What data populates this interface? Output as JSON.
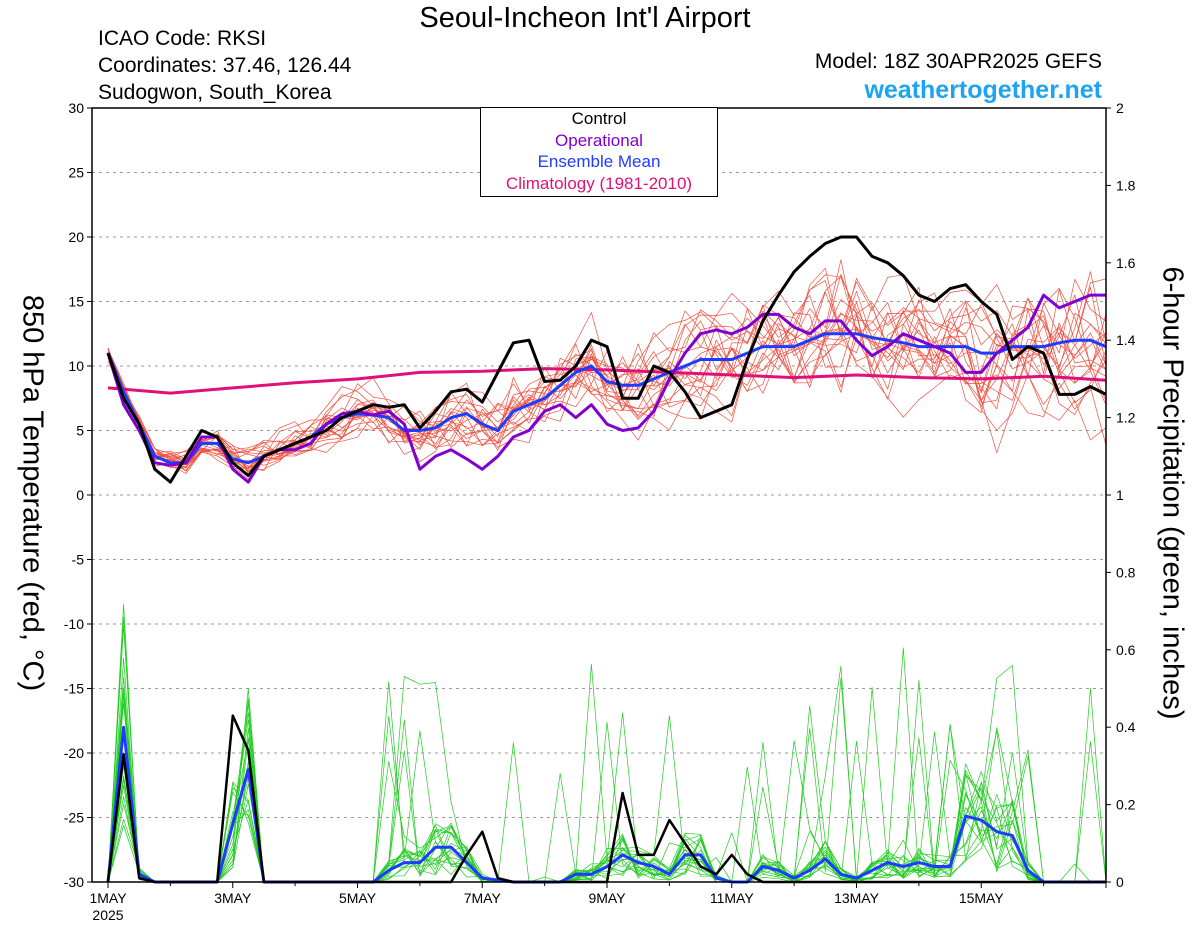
{
  "header": {
    "title": "Seoul-Incheon Int'l Airport",
    "icao": "ICAO Code: RKSI",
    "coords": "Coordinates: 37.46, 126.44",
    "region": "Sudogwon, South_Korea",
    "model": "Model: 18Z 30APR2025 GEFS",
    "site": "weathertogether.net"
  },
  "chart_data": {
    "type": "line",
    "ylabel": "850 hPa Temperature (red, °C)",
    "y2label": "6-hour Precipitation (green, inches)",
    "ylim": [
      -30,
      30
    ],
    "y2lim": [
      0,
      2
    ],
    "xlim_days": [
      0,
      16
    ],
    "yticks": [
      "30",
      "25",
      "20",
      "15",
      "10",
      "5",
      "0",
      "-5",
      "-10",
      "-15",
      "-20",
      "-25",
      "-30"
    ],
    "y2ticks": [
      "2",
      "1.8",
      "1.6",
      "1.4",
      "1.2",
      "1",
      "0.8",
      "0.6",
      "0.4",
      "0.2",
      "0"
    ],
    "xticks": [
      {
        "day": 0,
        "label": "1MAY",
        "sub": "2025"
      },
      {
        "day": 2,
        "label": "3MAY",
        "sub": ""
      },
      {
        "day": 4,
        "label": "5MAY",
        "sub": ""
      },
      {
        "day": 6,
        "label": "7MAY",
        "sub": ""
      },
      {
        "day": 8,
        "label": "9MAY",
        "sub": ""
      },
      {
        "day": 10,
        "label": "11MAY",
        "sub": ""
      },
      {
        "day": 12,
        "label": "13MAY",
        "sub": ""
      },
      {
        "day": 14,
        "label": "15MAY",
        "sub": ""
      }
    ],
    "legend": [
      {
        "name": "Control",
        "color": "#000000"
      },
      {
        "name": "Operational",
        "color": "#8000d0"
      },
      {
        "name": "Ensemble Mean",
        "color": "#1e3cff"
      },
      {
        "name": "Climatology (1981-2010)",
        "color": "#e0107a"
      }
    ],
    "temperature": {
      "control": [
        [
          0,
          11
        ],
        [
          0.25,
          7.5
        ],
        [
          0.5,
          5.5
        ],
        [
          0.75,
          2
        ],
        [
          1,
          1
        ],
        [
          1.25,
          3
        ],
        [
          1.5,
          5
        ],
        [
          1.75,
          4.5
        ],
        [
          2,
          2.5
        ],
        [
          2.25,
          1.5
        ],
        [
          2.5,
          3
        ],
        [
          2.75,
          3.5
        ],
        [
          3,
          4
        ],
        [
          3.25,
          4.5
        ],
        [
          3.5,
          5
        ],
        [
          3.75,
          6
        ],
        [
          4,
          6.5
        ],
        [
          4.25,
          7
        ],
        [
          4.5,
          6.8
        ],
        [
          4.75,
          7
        ],
        [
          5,
          5.2
        ],
        [
          5.25,
          6.5
        ],
        [
          5.5,
          8
        ],
        [
          5.75,
          8.2
        ],
        [
          6,
          7.2
        ],
        [
          6.25,
          9.5
        ],
        [
          6.5,
          11.8
        ],
        [
          6.75,
          12
        ],
        [
          7,
          8.8
        ],
        [
          7.25,
          8.9
        ],
        [
          7.5,
          10
        ],
        [
          7.75,
          12
        ],
        [
          8,
          11.5
        ],
        [
          8.25,
          7.5
        ],
        [
          8.5,
          7.5
        ],
        [
          8.75,
          10
        ],
        [
          9,
          9.5
        ],
        [
          9.25,
          8
        ],
        [
          9.5,
          6
        ],
        [
          9.75,
          6.5
        ],
        [
          10,
          7
        ],
        [
          10.25,
          10.5
        ],
        [
          10.5,
          13.5
        ],
        [
          10.75,
          15.5
        ],
        [
          11,
          17.3
        ],
        [
          11.25,
          18.5
        ],
        [
          11.5,
          19.5
        ],
        [
          11.75,
          20
        ],
        [
          12,
          20
        ],
        [
          12.25,
          18.5
        ],
        [
          12.5,
          18
        ],
        [
          12.75,
          17
        ],
        [
          13,
          15.5
        ],
        [
          13.25,
          15
        ],
        [
          13.5,
          16
        ],
        [
          13.75,
          16.3
        ],
        [
          14,
          15
        ],
        [
          14.25,
          14
        ],
        [
          14.5,
          10.5
        ],
        [
          14.75,
          11.5
        ],
        [
          15,
          11
        ],
        [
          15.25,
          7.8
        ],
        [
          15.5,
          7.8
        ],
        [
          15.75,
          8.4
        ],
        [
          16,
          7.8
        ]
      ],
      "operational": [
        [
          0,
          11
        ],
        [
          0.25,
          7
        ],
        [
          0.5,
          5
        ],
        [
          0.75,
          2.5
        ],
        [
          1,
          2.3
        ],
        [
          1.25,
          2.5
        ],
        [
          1.5,
          4.5
        ],
        [
          1.75,
          4.5
        ],
        [
          2,
          2
        ],
        [
          2.25,
          1
        ],
        [
          2.5,
          3
        ],
        [
          2.75,
          3.5
        ],
        [
          3,
          3.5
        ],
        [
          3.25,
          4
        ],
        [
          3.5,
          5.5
        ],
        [
          3.75,
          6.3
        ],
        [
          4,
          6.5
        ],
        [
          4.25,
          6.2
        ],
        [
          4.5,
          6.5
        ],
        [
          4.75,
          5.5
        ],
        [
          5,
          2
        ],
        [
          5.25,
          3
        ],
        [
          5.5,
          3.5
        ],
        [
          5.75,
          2.8
        ],
        [
          6,
          2
        ],
        [
          6.25,
          3
        ],
        [
          6.5,
          4.5
        ],
        [
          6.75,
          5
        ],
        [
          7,
          6.5
        ],
        [
          7.25,
          7
        ],
        [
          7.5,
          6
        ],
        [
          7.75,
          7
        ],
        [
          8,
          5.5
        ],
        [
          8.25,
          5
        ],
        [
          8.5,
          5.2
        ],
        [
          8.75,
          6.5
        ],
        [
          9,
          9
        ],
        [
          9.25,
          11
        ],
        [
          9.5,
          12.5
        ],
        [
          9.75,
          12.8
        ],
        [
          10,
          12.5
        ],
        [
          10.25,
          13
        ],
        [
          10.5,
          14
        ],
        [
          10.75,
          14
        ],
        [
          11,
          13
        ],
        [
          11.25,
          12.5
        ],
        [
          11.5,
          13.5
        ],
        [
          11.75,
          13.5
        ],
        [
          12,
          12
        ],
        [
          12.25,
          10.8
        ],
        [
          12.5,
          11.5
        ],
        [
          12.75,
          12.5
        ],
        [
          13,
          12
        ],
        [
          13.25,
          11.5
        ],
        [
          13.5,
          11
        ],
        [
          13.75,
          9.5
        ],
        [
          14,
          9.5
        ],
        [
          14.25,
          11
        ],
        [
          14.5,
          12
        ],
        [
          14.75,
          13
        ],
        [
          15,
          15.5
        ],
        [
          15.25,
          14.5
        ],
        [
          15.5,
          15
        ],
        [
          15.75,
          15.5
        ],
        [
          16,
          15.5
        ]
      ],
      "mean": [
        [
          0,
          11
        ],
        [
          0.25,
          8
        ],
        [
          0.5,
          5.5
        ],
        [
          0.75,
          3
        ],
        [
          1,
          2.5
        ],
        [
          1.25,
          2.5
        ],
        [
          1.5,
          4
        ],
        [
          1.75,
          4
        ],
        [
          2,
          2.8
        ],
        [
          2.25,
          2.5
        ],
        [
          2.5,
          3
        ],
        [
          2.75,
          3.5
        ],
        [
          3,
          4
        ],
        [
          3.25,
          4.5
        ],
        [
          3.5,
          5.5
        ],
        [
          3.75,
          6
        ],
        [
          4,
          6.3
        ],
        [
          4.25,
          6.2
        ],
        [
          4.5,
          6
        ],
        [
          4.75,
          5
        ],
        [
          5,
          5
        ],
        [
          5.25,
          5.2
        ],
        [
          5.5,
          6
        ],
        [
          5.75,
          6.3
        ],
        [
          6,
          5.5
        ],
        [
          6.25,
          5
        ],
        [
          6.5,
          6.5
        ],
        [
          6.75,
          7
        ],
        [
          7,
          7.5
        ],
        [
          7.25,
          8.5
        ],
        [
          7.5,
          9.5
        ],
        [
          7.75,
          10
        ],
        [
          8,
          8.8
        ],
        [
          8.25,
          8.5
        ],
        [
          8.5,
          8.5
        ],
        [
          8.75,
          9
        ],
        [
          9,
          9.5
        ],
        [
          9.25,
          10
        ],
        [
          9.5,
          10.5
        ],
        [
          9.75,
          10.5
        ],
        [
          10,
          10.5
        ],
        [
          10.25,
          11
        ],
        [
          10.5,
          11.5
        ],
        [
          10.75,
          11.5
        ],
        [
          11,
          11.5
        ],
        [
          11.25,
          12
        ],
        [
          11.5,
          12.5
        ],
        [
          11.75,
          12.5
        ],
        [
          12,
          12.5
        ],
        [
          12.25,
          12.2
        ],
        [
          12.5,
          12
        ],
        [
          12.75,
          11.8
        ],
        [
          13,
          11.5
        ],
        [
          13.25,
          11.5
        ],
        [
          13.5,
          11.5
        ],
        [
          13.75,
          11.5
        ],
        [
          14,
          11
        ],
        [
          14.25,
          11
        ],
        [
          14.5,
          11.5
        ],
        [
          14.75,
          11.5
        ],
        [
          15,
          11.5
        ],
        [
          15.25,
          11.8
        ],
        [
          15.5,
          12
        ],
        [
          15.75,
          12
        ],
        [
          16,
          11.5
        ]
      ],
      "climatology": [
        [
          0,
          8.3
        ],
        [
          1,
          7.9
        ],
        [
          2,
          8.3
        ],
        [
          3,
          8.7
        ],
        [
          4,
          9
        ],
        [
          5,
          9.5
        ],
        [
          6,
          9.6
        ],
        [
          7,
          9.8
        ],
        [
          8,
          9.7
        ],
        [
          9,
          9.5
        ],
        [
          10,
          9.3
        ],
        [
          11,
          9.1
        ],
        [
          12,
          9.3
        ],
        [
          13,
          9.1
        ],
        [
          14,
          9.0
        ],
        [
          15,
          9.2
        ],
        [
          16,
          8.9
        ]
      ]
    },
    "precipitation": {
      "control": [
        [
          0,
          0
        ],
        [
          0.25,
          0.33
        ],
        [
          0.5,
          0.01
        ],
        [
          0.75,
          0
        ],
        [
          1,
          0
        ],
        [
          1.25,
          0
        ],
        [
          1.5,
          0
        ],
        [
          1.75,
          0
        ],
        [
          2,
          0.43
        ],
        [
          2.25,
          0.34
        ],
        [
          2.5,
          0
        ],
        [
          3,
          0
        ],
        [
          3.5,
          0
        ],
        [
          4,
          0
        ],
        [
          4.5,
          0
        ],
        [
          5,
          0
        ],
        [
          5.25,
          0
        ],
        [
          5.5,
          0
        ],
        [
          5.75,
          0.07
        ],
        [
          6,
          0.13
        ],
        [
          6.25,
          0.01
        ],
        [
          6.5,
          0
        ],
        [
          7,
          0
        ],
        [
          7.5,
          0
        ],
        [
          8,
          0
        ],
        [
          8.25,
          0.23
        ],
        [
          8.5,
          0.07
        ],
        [
          8.75,
          0.07
        ],
        [
          9,
          0.16
        ],
        [
          9.25,
          0.1
        ],
        [
          9.5,
          0.04
        ],
        [
          9.75,
          0.02
        ],
        [
          10,
          0.07
        ],
        [
          10.25,
          0.02
        ],
        [
          10.5,
          0
        ],
        [
          11,
          0
        ],
        [
          12,
          0
        ],
        [
          13,
          0
        ],
        [
          14,
          0
        ],
        [
          15,
          0
        ],
        [
          16,
          0
        ]
      ],
      "mean": [
        [
          0,
          0
        ],
        [
          0.25,
          0.4
        ],
        [
          0.5,
          0.02
        ],
        [
          0.75,
          0
        ],
        [
          1,
          0
        ],
        [
          1.25,
          0
        ],
        [
          1.5,
          0
        ],
        [
          1.75,
          0
        ],
        [
          2,
          0.15
        ],
        [
          2.25,
          0.29
        ],
        [
          2.5,
          0
        ],
        [
          3,
          0
        ],
        [
          3.5,
          0
        ],
        [
          4,
          0
        ],
        [
          4.25,
          0
        ],
        [
          4.5,
          0.03
        ],
        [
          4.75,
          0.05
        ],
        [
          5,
          0.05
        ],
        [
          5.25,
          0.09
        ],
        [
          5.5,
          0.09
        ],
        [
          5.75,
          0.05
        ],
        [
          6,
          0.01
        ],
        [
          6.5,
          0
        ],
        [
          7,
          0
        ],
        [
          7.25,
          0
        ],
        [
          7.5,
          0.02
        ],
        [
          7.75,
          0.02
        ],
        [
          8,
          0.04
        ],
        [
          8.25,
          0.07
        ],
        [
          8.5,
          0.05
        ],
        [
          8.75,
          0.04
        ],
        [
          9,
          0.02
        ],
        [
          9.25,
          0.07
        ],
        [
          9.5,
          0.07
        ],
        [
          9.75,
          0.01
        ],
        [
          10,
          0
        ],
        [
          10.25,
          0
        ],
        [
          10.5,
          0.04
        ],
        [
          10.75,
          0.03
        ],
        [
          11,
          0.01
        ],
        [
          11.25,
          0.03
        ],
        [
          11.5,
          0.06
        ],
        [
          11.75,
          0.02
        ],
        [
          12,
          0.01
        ],
        [
          12.25,
          0.03
        ],
        [
          12.5,
          0.05
        ],
        [
          12.75,
          0.04
        ],
        [
          13,
          0.05
        ],
        [
          13.25,
          0.04
        ],
        [
          13.5,
          0.04
        ],
        [
          13.75,
          0.17
        ],
        [
          14,
          0.16
        ],
        [
          14.25,
          0.13
        ],
        [
          14.5,
          0.12
        ],
        [
          14.75,
          0.03
        ],
        [
          15,
          0
        ],
        [
          15.5,
          0
        ],
        [
          16,
          0
        ]
      ]
    }
  }
}
